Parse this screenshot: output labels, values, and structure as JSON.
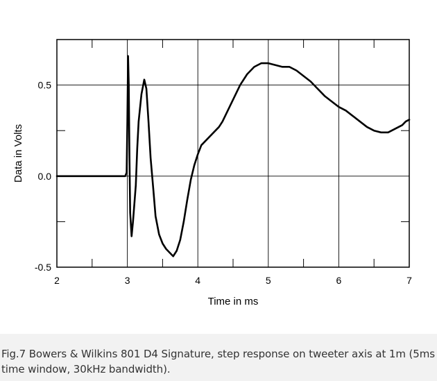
{
  "chart_data": {
    "type": "line",
    "title": "",
    "xlabel": "Time in ms",
    "ylabel": "Data in Volts",
    "xlim": [
      2,
      7
    ],
    "ylim": [
      -0.5,
      0.75
    ],
    "x_ticks": [
      2,
      3,
      4,
      5,
      6,
      7
    ],
    "x_tick_labels": [
      "2",
      "3",
      "4",
      "5",
      "6",
      "7"
    ],
    "y_ticks": [
      -0.5,
      0.0,
      0.5
    ],
    "y_tick_labels": [
      "-0.5",
      "0.0",
      "0.5"
    ],
    "grid": true,
    "line_color": "#000000",
    "series": [
      {
        "x": [
          2.0,
          2.97,
          2.99,
          3.0,
          3.01,
          3.02,
          3.03,
          3.04,
          3.06,
          3.08,
          3.09,
          3.1,
          3.12,
          3.14,
          3.16,
          3.2,
          3.24,
          3.27,
          3.3,
          3.33,
          3.37,
          3.4,
          3.45,
          3.5,
          3.55,
          3.6,
          3.65,
          3.7,
          3.75,
          3.8,
          3.85,
          3.9,
          3.95,
          4.0,
          4.05,
          4.1,
          4.15,
          4.2,
          4.25,
          4.3,
          4.35,
          4.4,
          4.5,
          4.6,
          4.7,
          4.8,
          4.9,
          5.0,
          5.1,
          5.2,
          5.3,
          5.4,
          5.5,
          5.6,
          5.7,
          5.8,
          5.9,
          6.0,
          6.1,
          6.2,
          6.3,
          6.4,
          6.5,
          6.6,
          6.7,
          6.8,
          6.9,
          6.95,
          7.0
        ],
        "y": [
          0.0,
          0.0,
          0.02,
          0.3,
          0.66,
          0.5,
          0.1,
          -0.2,
          -0.33,
          -0.25,
          -0.2,
          -0.15,
          -0.05,
          0.15,
          0.3,
          0.45,
          0.53,
          0.48,
          0.3,
          0.1,
          -0.08,
          -0.22,
          -0.32,
          -0.37,
          -0.4,
          -0.42,
          -0.44,
          -0.41,
          -0.35,
          -0.25,
          -0.13,
          -0.02,
          0.06,
          0.12,
          0.17,
          0.19,
          0.21,
          0.23,
          0.25,
          0.27,
          0.3,
          0.34,
          0.42,
          0.5,
          0.56,
          0.6,
          0.62,
          0.62,
          0.61,
          0.6,
          0.6,
          0.58,
          0.55,
          0.52,
          0.48,
          0.44,
          0.41,
          0.38,
          0.36,
          0.33,
          0.3,
          0.27,
          0.25,
          0.24,
          0.24,
          0.26,
          0.28,
          0.3,
          0.31
        ]
      }
    ]
  },
  "caption": {
    "text": "Fig.7 Bowers & Wilkins 801 D4 Signature, step response on tweeter axis at 1m (5ms time window, 30kHz bandwidth)."
  }
}
